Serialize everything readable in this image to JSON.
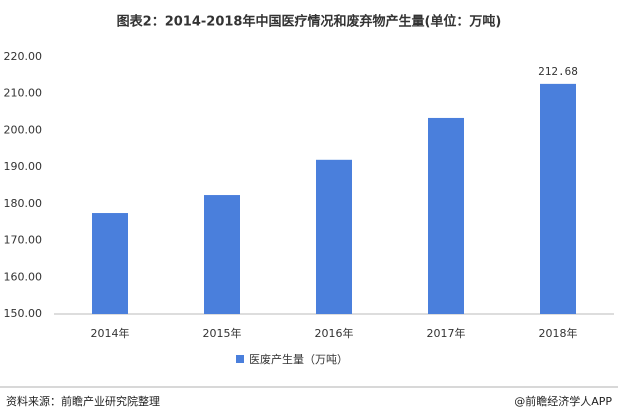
{
  "chart_data": {
    "type": "bar",
    "title": "图表2：2014-2018年中国医疗情况和废弃物产生量(单位：万吨)",
    "categories": [
      "2014年",
      "2015年",
      "2016年",
      "2017年",
      "2018年"
    ],
    "series": [
      {
        "name": "医废产生量（万吨）",
        "color": "#4a7fdc",
        "values": [
          177.5,
          182.4,
          192.0,
          203.4,
          212.68
        ],
        "value_labels": [
          null,
          null,
          null,
          null,
          "212.68"
        ]
      }
    ],
    "ylim": [
      150,
      220
    ],
    "yticks": [
      {
        "value": 150,
        "label": "150.00"
      },
      {
        "value": 160,
        "label": "160.00"
      },
      {
        "value": 170,
        "label": "170.00"
      },
      {
        "value": 180,
        "label": "180.00"
      },
      {
        "value": 190,
        "label": "190.00"
      },
      {
        "value": 200,
        "label": "200.00"
      },
      {
        "value": 210,
        "label": "210.00"
      },
      {
        "value": 220,
        "label": "220.00"
      }
    ],
    "grid": false,
    "legend": "bottom",
    "source": "资料来源：前瞻产业研究院整理",
    "credit": "@前瞻经济学人APP"
  }
}
